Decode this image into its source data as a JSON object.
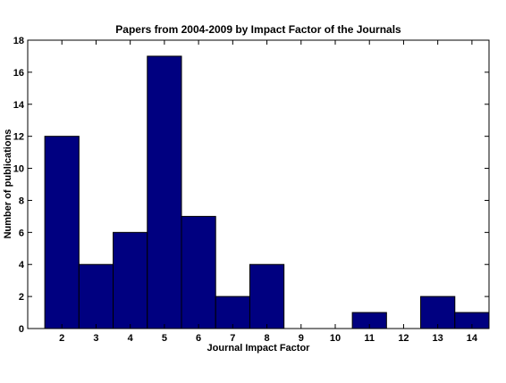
{
  "chart_data": {
    "type": "bar",
    "title": "Papers from 2004-2009 by Impact Factor of the Journals",
    "xlabel": "Journal Impact Factor",
    "ylabel": "Number of publications",
    "categories": [
      "2",
      "3",
      "4",
      "5",
      "6",
      "7",
      "8",
      "9",
      "10",
      "11",
      "12",
      "13",
      "14"
    ],
    "values": [
      12,
      4,
      6,
      17,
      7,
      2,
      4,
      0,
      0,
      1,
      0,
      2,
      1
    ],
    "x_range": [
      1,
      14.5
    ],
    "ylim": [
      0,
      18
    ],
    "yticks": [
      0,
      2,
      4,
      6,
      8,
      10,
      12,
      14,
      16,
      18
    ],
    "grid": false,
    "bar_color": "#000080"
  }
}
